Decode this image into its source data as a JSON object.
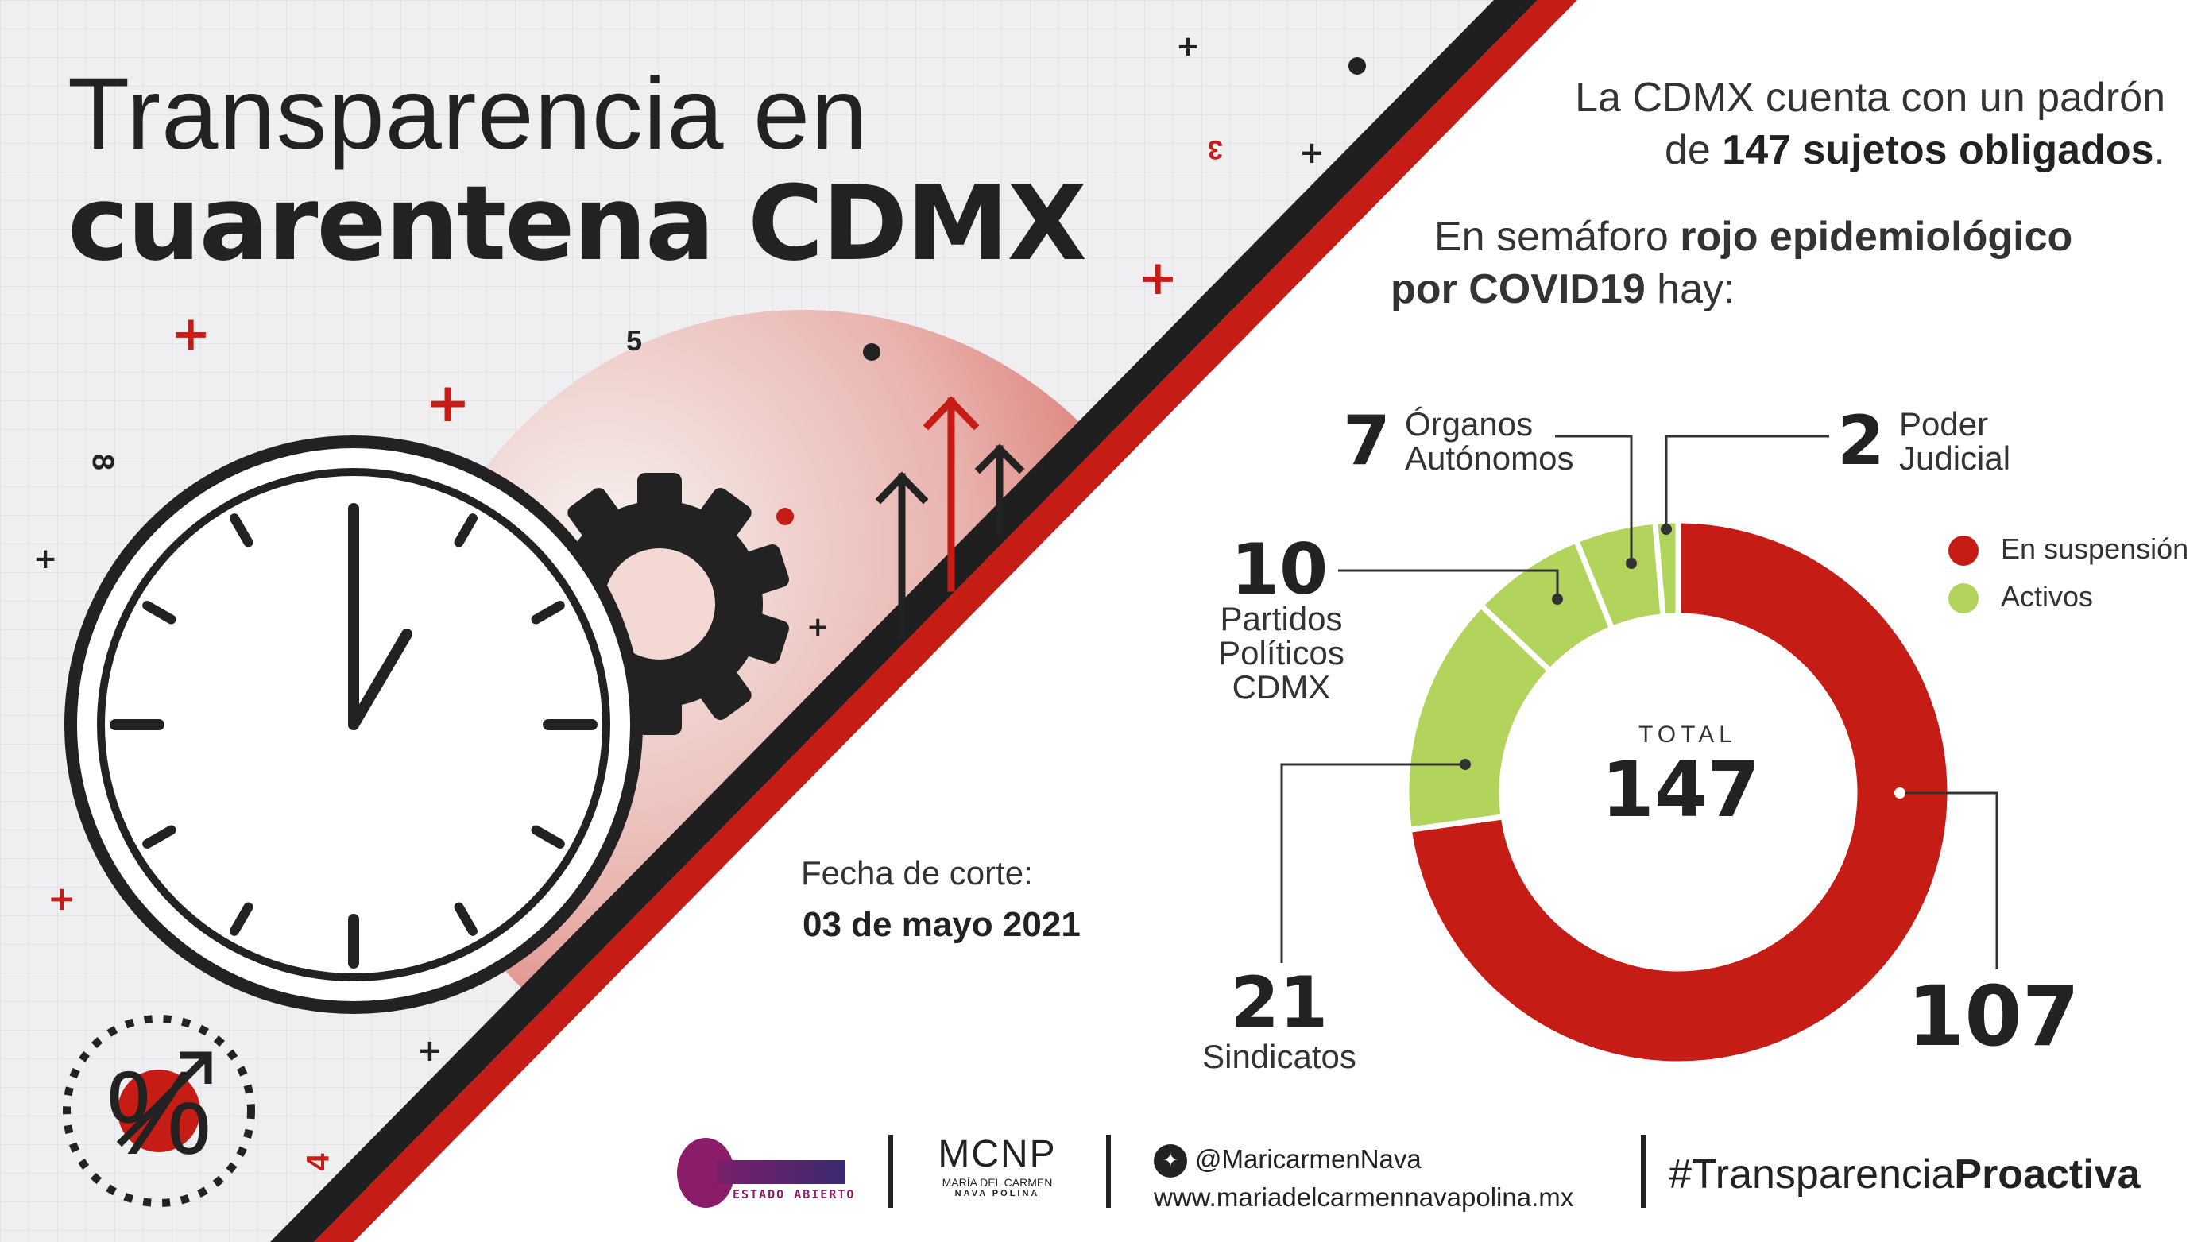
{
  "title": {
    "line1": "Transparencia en",
    "line2": "cuarentena CDMX"
  },
  "intro": {
    "p1_a": "La CDMX cuenta con un padrón",
    "p1_b": "de ",
    "p1_bold": "147 sujetos obligados",
    "p1_end": ".",
    "p2_a": "En semáforo ",
    "p2_bold1": "rojo epidemiológico",
    "p2_bold2": "por COVID19",
    "p2_end": " hay:"
  },
  "fecha": {
    "label": "Fecha de corte:",
    "value": "03 de mayo 2021"
  },
  "decor": {
    "n3": "3",
    "n5": "5",
    "n8": "8",
    "n4": "4"
  },
  "chart_data": {
    "type": "pie",
    "style": "donut",
    "total_label": "TOTAL",
    "total": "147",
    "legend": [
      {
        "name": "En suspensión",
        "color": "#c51c16"
      },
      {
        "name": "Activos",
        "color": "#b2d35c"
      }
    ],
    "legend_position": "right",
    "slices": [
      {
        "value": 107,
        "num": "107",
        "label": "",
        "status": "En suspensión",
        "color": "#c51c16"
      },
      {
        "value": 21,
        "num": "21",
        "label": "Sindicatos",
        "status": "Activos",
        "color": "#b2d35c"
      },
      {
        "value": 10,
        "num": "10",
        "label": "Partidos Políticos CDMX",
        "lines": [
          "Partidos",
          "Políticos",
          "CDMX"
        ],
        "status": "Activos",
        "color": "#b2d35c"
      },
      {
        "value": 7,
        "num": "7",
        "label": "Órganos Autónomos",
        "lines": [
          "Órganos",
          "Autónomos"
        ],
        "status": "Activos",
        "color": "#b2d35c"
      },
      {
        "value": 2,
        "num": "2",
        "label": "Poder Judicial",
        "lines": [
          "Poder",
          "Judicial"
        ],
        "status": "Activos",
        "color": "#b2d35c"
      }
    ]
  },
  "footer": {
    "logo1": "ESTADO ABIERTO",
    "logo2_mark": "MCNP",
    "logo2_name": "MARÍA DEL CARMEN",
    "logo2_sub": "NAVA POLINA",
    "twitter": "@MaricarmenNava",
    "url": "www.mariadelcarmennavapolina.mx",
    "hashtag_a": "#Transparencia",
    "hashtag_b": "Proactiva"
  },
  "colors": {
    "red": "#c51c16",
    "green": "#b2d35c",
    "dark": "#222222"
  }
}
